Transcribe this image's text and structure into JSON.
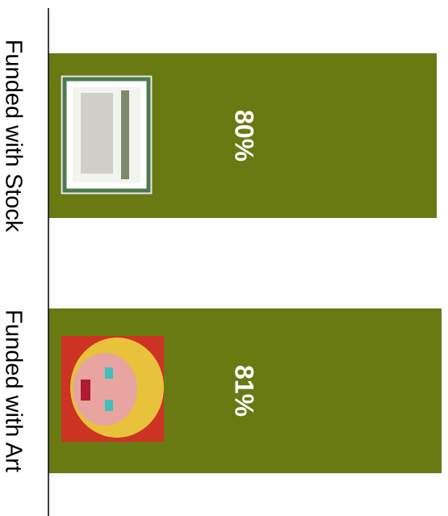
{
  "chart_data": {
    "type": "bar",
    "orientation": "horizontal",
    "categories": [
      "Funded with Stock",
      "Funded with Art"
    ],
    "values": [
      80,
      81
    ],
    "value_labels": [
      "80%",
      "81%"
    ],
    "color": "#697a12"
  }
}
